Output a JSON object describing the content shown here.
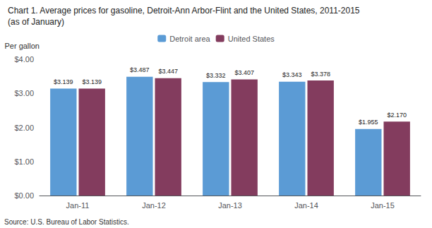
{
  "chart_data": {
    "type": "bar",
    "title": "Chart 1. Average prices for gasoline, Detroit-Ann Arbor-Flint and the United States, 2011-2015",
    "subtitle": "(as of January)",
    "ylabel": "Per gallon",
    "annotations": [
      "Source: U.S. Bureau of Labor Statistics."
    ],
    "categories": [
      "Jan-11",
      "Jan-12",
      "Jan-13",
      "Jan-14",
      "Jan-15"
    ],
    "series": [
      {
        "name": "Detroit area",
        "color": "#5B9BD5",
        "values": [
          3.139,
          3.487,
          3.332,
          3.343,
          1.955
        ],
        "value_labels": [
          "$3.139",
          "$3.487",
          "$3.332",
          "$3.343",
          "$1.955"
        ]
      },
      {
        "name": "United States",
        "color": "#833C5E",
        "values": [
          3.139,
          3.447,
          3.407,
          3.378,
          2.17
        ],
        "value_labels": [
          "$3.139",
          "$3.447",
          "$3.407",
          "$3.378",
          "$2.170"
        ]
      }
    ],
    "ylim": [
      0,
      4.0
    ],
    "yticks": [
      {
        "value": 0.0,
        "label": "$0.00"
      },
      {
        "value": 1.0,
        "label": "$1.00"
      },
      {
        "value": 2.0,
        "label": "$2.00"
      },
      {
        "value": 3.0,
        "label": "$3.00"
      },
      {
        "value": 4.0,
        "label": "$4.00"
      }
    ],
    "grid": false,
    "legend": "top",
    "data_labels": true
  }
}
